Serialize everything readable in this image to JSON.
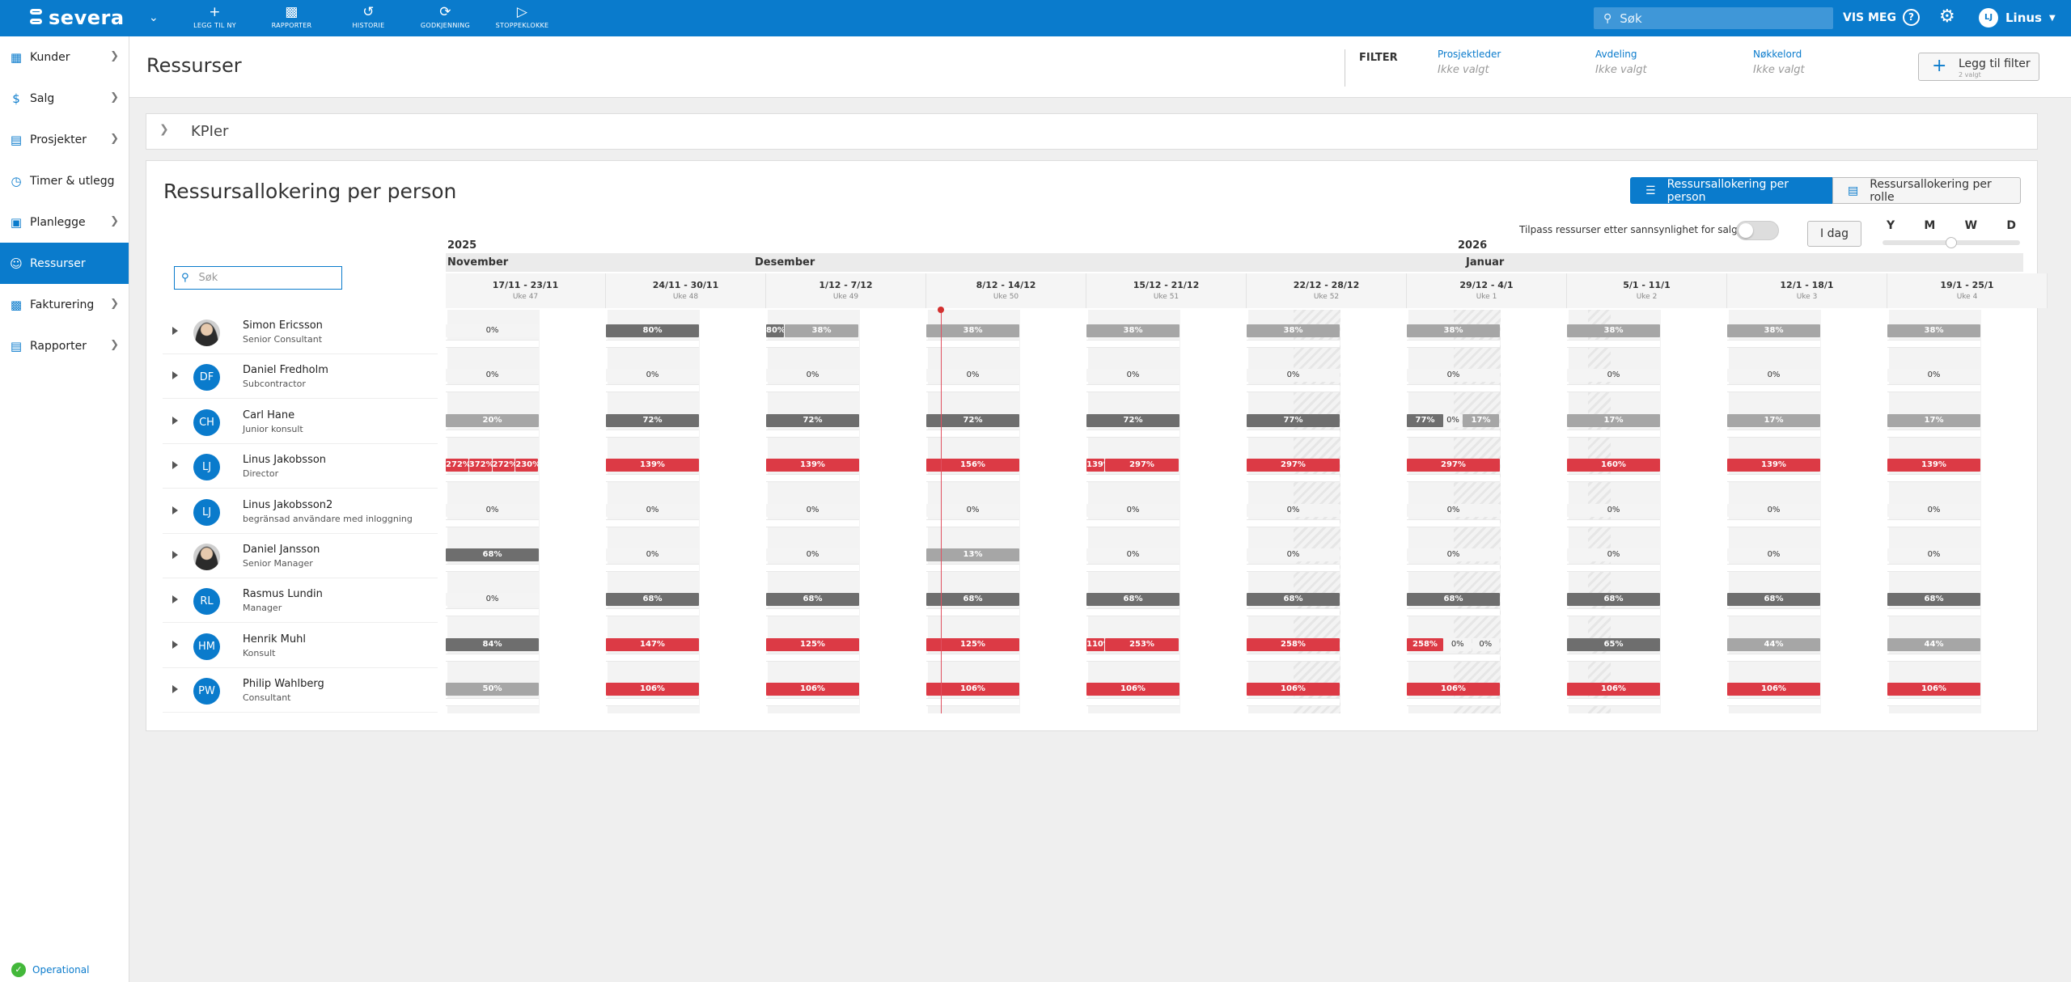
{
  "topbar": {
    "logo": "severa",
    "nav": [
      {
        "label": "LEGG TIL NY",
        "icon": "plus-icon"
      },
      {
        "label": "RAPPORTER",
        "icon": "bar-chart-icon"
      },
      {
        "label": "HISTORIE",
        "icon": "history-icon"
      },
      {
        "label": "GODKJENNING",
        "icon": "approval-icon"
      },
      {
        "label": "STOPPEKLOKKE",
        "icon": "stopwatch-icon"
      }
    ],
    "search_placeholder": "Søk",
    "vis_meg": "VIS MEG",
    "user_initials": "LJ",
    "user_name": "Linus"
  },
  "sidebar": {
    "items": [
      {
        "label": "Kunder",
        "icon": "building-icon",
        "active": false,
        "chevron": true
      },
      {
        "label": "Salg",
        "icon": "dollar-icon",
        "active": false,
        "chevron": true
      },
      {
        "label": "Prosjekter",
        "icon": "folder-icon",
        "active": false,
        "chevron": true
      },
      {
        "label": "Timer & utlegg",
        "icon": "clock-icon",
        "active": false,
        "chevron": false
      },
      {
        "label": "Planlegge",
        "icon": "calendar-icon",
        "active": false,
        "chevron": true
      },
      {
        "label": "Ressurser",
        "icon": "users-icon",
        "active": true,
        "chevron": false
      },
      {
        "label": "Fakturering",
        "icon": "invoice-icon",
        "active": false,
        "chevron": true
      },
      {
        "label": "Rapporter",
        "icon": "report-icon",
        "active": false,
        "chevron": true
      }
    ],
    "status": "Operational"
  },
  "header": {
    "title": "Ressurser",
    "filter_label": "FILTER",
    "filters": [
      {
        "key": "Prosjektleder",
        "value": "Ikke valgt"
      },
      {
        "key": "Avdeling",
        "value": "Ikke valgt"
      },
      {
        "key": "Nøkkelord",
        "value": "Ikke valgt"
      }
    ],
    "add_filter": "Legg til filter",
    "add_filter_sub": "2 valgt"
  },
  "kpi": {
    "label": "KPIer"
  },
  "panel": {
    "title": "Ressursallokering per person",
    "view_person": "Ressursallokering per person",
    "view_role": "Ressursallokering per rolle",
    "adjust_label": "Tilpass ressurser etter sannsynlighet for salg",
    "today": "I dag",
    "zoom_levels": [
      "Y",
      "M",
      "W",
      "D"
    ],
    "search_placeholder": "Søk"
  },
  "timeline": {
    "years": [
      {
        "label": "2025"
      },
      {
        "label": "2026"
      }
    ],
    "months": [
      "November",
      "Desember",
      "Januar"
    ],
    "weeks": [
      {
        "range": "17/11 - 23/11",
        "week": "Uke 47"
      },
      {
        "range": "24/11 - 30/11",
        "week": "Uke 48"
      },
      {
        "range": "1/12 - 7/12",
        "week": "Uke 49"
      },
      {
        "range": "8/12 - 14/12",
        "week": "Uke 50"
      },
      {
        "range": "15/12 - 21/12",
        "week": "Uke 51"
      },
      {
        "range": "22/12 - 28/12",
        "week": "Uke 52"
      },
      {
        "range": "29/12 - 4/1",
        "week": "Uke 1"
      },
      {
        "range": "5/1 - 11/1",
        "week": "Uke 2"
      },
      {
        "range": "12/1 - 18/1",
        "week": "Uke 3"
      },
      {
        "range": "19/1 - 25/1",
        "week": "Uke 4"
      }
    ]
  },
  "people": [
    {
      "name": "Simon Ericsson",
      "role": "Senior Consultant",
      "initials": "",
      "photo": true,
      "weeks": [
        [
          {
            "v": "0%",
            "c": "z"
          }
        ],
        [
          {
            "v": "80%",
            "c": "d"
          }
        ],
        [
          {
            "v": "80%",
            "c": "d",
            "w": 0.2
          },
          {
            "v": "38%",
            "c": "l",
            "w": 0.8
          }
        ],
        [
          {
            "v": "38%",
            "c": "l"
          }
        ],
        [
          {
            "v": "38%",
            "c": "l"
          }
        ],
        [
          {
            "v": "38%",
            "c": "l"
          }
        ],
        [
          {
            "v": "38%",
            "c": "l"
          }
        ],
        [
          {
            "v": "38%",
            "c": "l"
          }
        ],
        [
          {
            "v": "38%",
            "c": "l"
          }
        ],
        [
          {
            "v": "38%",
            "c": "l"
          }
        ]
      ]
    },
    {
      "name": "Daniel Fredholm",
      "role": "Subcontractor",
      "initials": "DF",
      "photo": false,
      "weeks": [
        [
          {
            "v": "0%",
            "c": "z"
          }
        ],
        [
          {
            "v": "0%",
            "c": "z"
          }
        ],
        [
          {
            "v": "0%",
            "c": "z"
          }
        ],
        [
          {
            "v": "0%",
            "c": "z"
          }
        ],
        [
          {
            "v": "0%",
            "c": "z"
          }
        ],
        [
          {
            "v": "0%",
            "c": "z"
          }
        ],
        [
          {
            "v": "0%",
            "c": "z"
          }
        ],
        [
          {
            "v": "0%",
            "c": "z"
          }
        ],
        [
          {
            "v": "0%",
            "c": "z"
          }
        ],
        [
          {
            "v": "0%",
            "c": "z"
          }
        ]
      ]
    },
    {
      "name": "Carl Hane",
      "role": "Junior konsult",
      "initials": "CH",
      "photo": false,
      "weeks": [
        [
          {
            "v": "20%",
            "c": "l"
          }
        ],
        [
          {
            "v": "72%",
            "c": "d"
          }
        ],
        [
          {
            "v": "72%",
            "c": "d"
          }
        ],
        [
          {
            "v": "72%",
            "c": "d"
          }
        ],
        [
          {
            "v": "72%",
            "c": "d"
          }
        ],
        [
          {
            "v": "77%",
            "c": "d"
          }
        ],
        [
          {
            "v": "77%",
            "c": "d",
            "w": 0.4
          },
          {
            "v": "0%",
            "c": "z",
            "w": 0.2
          },
          {
            "v": "17%",
            "c": "l",
            "w": 0.4
          }
        ],
        [
          {
            "v": "17%",
            "c": "l"
          }
        ],
        [
          {
            "v": "17%",
            "c": "l"
          }
        ],
        [
          {
            "v": "17%",
            "c": "l"
          }
        ]
      ]
    },
    {
      "name": "Linus Jakobsson",
      "role": "Director",
      "initials": "LJ",
      "photo": false,
      "weeks": [
        [
          {
            "v": "272%",
            "c": "r",
            "w": 0.25
          },
          {
            "v": "372%",
            "c": "r",
            "w": 0.25
          },
          {
            "v": "272%",
            "c": "r",
            "w": 0.25
          },
          {
            "v": "230%",
            "c": "r",
            "w": 0.25
          }
        ],
        [
          {
            "v": "139%",
            "c": "r"
          }
        ],
        [
          {
            "v": "139%",
            "c": "r"
          }
        ],
        [
          {
            "v": "156%",
            "c": "r"
          }
        ],
        [
          {
            "v": "139%",
            "c": "r",
            "w": 0.2
          },
          {
            "v": "297%",
            "c": "r",
            "w": 0.8
          }
        ],
        [
          {
            "v": "297%",
            "c": "r"
          }
        ],
        [
          {
            "v": "297%",
            "c": "r"
          }
        ],
        [
          {
            "v": "160%",
            "c": "r"
          }
        ],
        [
          {
            "v": "139%",
            "c": "r"
          }
        ],
        [
          {
            "v": "139%",
            "c": "r"
          }
        ]
      ]
    },
    {
      "name": "Linus Jakobsson2",
      "role": "begränsad användare med inloggning",
      "initials": "LJ",
      "photo": false,
      "weeks": [
        [
          {
            "v": "0%",
            "c": "z"
          }
        ],
        [
          {
            "v": "0%",
            "c": "z"
          }
        ],
        [
          {
            "v": "0%",
            "c": "z"
          }
        ],
        [
          {
            "v": "0%",
            "c": "z"
          }
        ],
        [
          {
            "v": "0%",
            "c": "z"
          }
        ],
        [
          {
            "v": "0%",
            "c": "z"
          }
        ],
        [
          {
            "v": "0%",
            "c": "z"
          }
        ],
        [
          {
            "v": "0%",
            "c": "z"
          }
        ],
        [
          {
            "v": "0%",
            "c": "z"
          }
        ],
        [
          {
            "v": "0%",
            "c": "z"
          }
        ]
      ]
    },
    {
      "name": "Daniel Jansson",
      "role": "Senior Manager",
      "initials": "",
      "photo": true,
      "weeks": [
        [
          {
            "v": "68%",
            "c": "d"
          }
        ],
        [
          {
            "v": "0%",
            "c": "z"
          }
        ],
        [
          {
            "v": "0%",
            "c": "z"
          }
        ],
        [
          {
            "v": "13%",
            "c": "l"
          }
        ],
        [
          {
            "v": "0%",
            "c": "z"
          }
        ],
        [
          {
            "v": "0%",
            "c": "z"
          }
        ],
        [
          {
            "v": "0%",
            "c": "z"
          }
        ],
        [
          {
            "v": "0%",
            "c": "z"
          }
        ],
        [
          {
            "v": "0%",
            "c": "z"
          }
        ],
        [
          {
            "v": "0%",
            "c": "z"
          }
        ]
      ]
    },
    {
      "name": "Rasmus Lundin",
      "role": "Manager",
      "initials": "RL",
      "photo": false,
      "weeks": [
        [
          {
            "v": "0%",
            "c": "z"
          }
        ],
        [
          {
            "v": "68%",
            "c": "d"
          }
        ],
        [
          {
            "v": "68%",
            "c": "d"
          }
        ],
        [
          {
            "v": "68%",
            "c": "d"
          }
        ],
        [
          {
            "v": "68%",
            "c": "d"
          }
        ],
        [
          {
            "v": "68%",
            "c": "d"
          }
        ],
        [
          {
            "v": "68%",
            "c": "d"
          }
        ],
        [
          {
            "v": "68%",
            "c": "d"
          }
        ],
        [
          {
            "v": "68%",
            "c": "d"
          }
        ],
        [
          {
            "v": "68%",
            "c": "d"
          }
        ]
      ]
    },
    {
      "name": "Henrik Muhl",
      "role": "Konsult",
      "initials": "HM",
      "photo": false,
      "weeks": [
        [
          {
            "v": "84%",
            "c": "d"
          }
        ],
        [
          {
            "v": "147%",
            "c": "r"
          }
        ],
        [
          {
            "v": "125%",
            "c": "r"
          }
        ],
        [
          {
            "v": "125%",
            "c": "r"
          }
        ],
        [
          {
            "v": "110%",
            "c": "r",
            "w": 0.2
          },
          {
            "v": "253%",
            "c": "r",
            "w": 0.8
          }
        ],
        [
          {
            "v": "258%",
            "c": "r"
          }
        ],
        [
          {
            "v": "258%",
            "c": "r",
            "w": 0.4
          },
          {
            "v": "0%",
            "c": "z",
            "w": 0.3
          },
          {
            "v": "0%",
            "c": "z",
            "w": 0.3
          }
        ],
        [
          {
            "v": "65%",
            "c": "d"
          }
        ],
        [
          {
            "v": "44%",
            "c": "l"
          }
        ],
        [
          {
            "v": "44%",
            "c": "l"
          }
        ]
      ]
    },
    {
      "name": "Philip Wahlberg",
      "role": "Consultant",
      "initials": "PW",
      "photo": false,
      "weeks": [
        [
          {
            "v": "50%",
            "c": "l"
          }
        ],
        [
          {
            "v": "106%",
            "c": "r"
          }
        ],
        [
          {
            "v": "106%",
            "c": "r"
          }
        ],
        [
          {
            "v": "106%",
            "c": "r"
          }
        ],
        [
          {
            "v": "106%",
            "c": "r"
          }
        ],
        [
          {
            "v": "106%",
            "c": "r"
          }
        ],
        [
          {
            "v": "106%",
            "c": "r"
          }
        ],
        [
          {
            "v": "106%",
            "c": "r"
          }
        ],
        [
          {
            "v": "106%",
            "c": "r"
          }
        ],
        [
          {
            "v": "106%",
            "c": "r"
          }
        ]
      ]
    }
  ]
}
